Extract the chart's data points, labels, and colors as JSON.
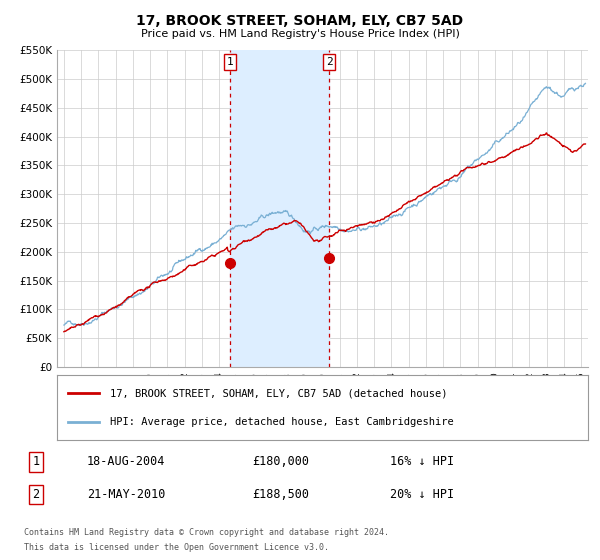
{
  "title": "17, BROOK STREET, SOHAM, ELY, CB7 5AD",
  "subtitle": "Price paid vs. HM Land Registry's House Price Index (HPI)",
  "ylim": [
    0,
    550000
  ],
  "yticks": [
    0,
    50000,
    100000,
    150000,
    200000,
    250000,
    300000,
    350000,
    400000,
    450000,
    500000,
    550000
  ],
  "ytick_labels": [
    "£0",
    "£50K",
    "£100K",
    "£150K",
    "£200K",
    "£250K",
    "£300K",
    "£350K",
    "£400K",
    "£450K",
    "£500K",
    "£550K"
  ],
  "xlim_start": 1994.6,
  "xlim_end": 2025.4,
  "sale1_date": 2004.625,
  "sale1_price": 180000,
  "sale1_label": "18-AUG-2004",
  "sale1_amount": "£180,000",
  "sale1_pct": "16% ↓ HPI",
  "sale2_date": 2010.385,
  "sale2_price": 188500,
  "sale2_label": "21-MAY-2010",
  "sale2_amount": "£188,500",
  "sale2_pct": "20% ↓ HPI",
  "shaded_start": 2004.625,
  "shaded_end": 2010.385,
  "property_color": "#cc0000",
  "hpi_color": "#7ab0d4",
  "shaded_color": "#ddeeff",
  "grid_color": "#cccccc",
  "legend_label_property": "17, BROOK STREET, SOHAM, ELY, CB7 5AD (detached house)",
  "legend_label_hpi": "HPI: Average price, detached house, East Cambridgeshire",
  "footnote1": "Contains HM Land Registry data © Crown copyright and database right 2024.",
  "footnote2": "This data is licensed under the Open Government Licence v3.0."
}
